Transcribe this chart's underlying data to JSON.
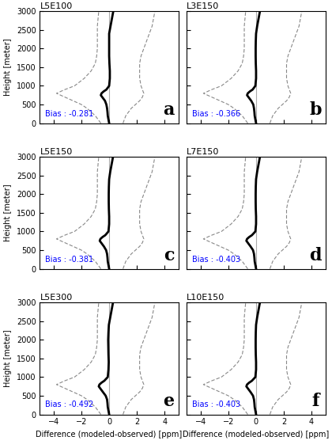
{
  "titles": [
    "L5E100",
    "L3E150",
    "L5E150",
    "L7E150",
    "L5E300",
    "L10E150"
  ],
  "labels": [
    "a",
    "b",
    "c",
    "d",
    "e",
    "f"
  ],
  "biases": [
    -0.281,
    -0.366,
    -0.381,
    -0.403,
    -0.492,
    -0.403
  ],
  "xlim": [
    -5.0,
    5.0
  ],
  "ylim": [
    0,
    3000
  ],
  "xlabel": "Difference (modeled-observed) [ppm]",
  "ylabel": "Height [meter]",
  "yticks": [
    0,
    500,
    1000,
    1500,
    2000,
    2500,
    3000
  ],
  "xticks": [
    -4.0,
    -2.0,
    0.0,
    2.0,
    4.0
  ],
  "bg_color": "#ffffff",
  "mean_color": "black",
  "std_color": "#888888",
  "bias_color": "blue",
  "vline_color": "#aaaaaa",
  "label_fontsize": 16,
  "bias_fontsize": 7,
  "title_fontsize": 8,
  "tick_fontsize": 7,
  "axis_label_fontsize": 7,
  "heights": [
    0,
    100,
    200,
    300,
    400,
    500,
    600,
    700,
    750,
    800,
    850,
    900,
    1000,
    1200,
    1400,
    1600,
    1800,
    2000,
    2200,
    2400,
    2600,
    2800,
    3000
  ],
  "mean_profiles": {
    "a": [
      0.0,
      -0.05,
      -0.1,
      -0.12,
      -0.15,
      -0.2,
      -0.3,
      -0.5,
      -0.6,
      -0.55,
      -0.4,
      -0.2,
      0.0,
      0.05,
      0.05,
      0.02,
      0.0,
      0.0,
      0.0,
      0.0,
      0.1,
      0.2,
      0.3
    ],
    "b": [
      0.0,
      -0.05,
      -0.1,
      -0.12,
      -0.15,
      -0.2,
      -0.35,
      -0.55,
      -0.65,
      -0.6,
      -0.45,
      -0.25,
      -0.05,
      0.0,
      0.0,
      -0.02,
      -0.03,
      -0.03,
      -0.02,
      0.0,
      0.08,
      0.18,
      0.28
    ],
    "c": [
      0.0,
      -0.05,
      -0.1,
      -0.12,
      -0.15,
      -0.22,
      -0.38,
      -0.58,
      -0.68,
      -0.63,
      -0.48,
      -0.28,
      -0.05,
      0.0,
      0.0,
      -0.02,
      -0.03,
      -0.03,
      -0.02,
      0.0,
      0.08,
      0.18,
      0.28
    ],
    "d": [
      0.0,
      -0.05,
      -0.1,
      -0.12,
      -0.15,
      -0.22,
      -0.4,
      -0.6,
      -0.7,
      -0.65,
      -0.5,
      -0.3,
      -0.05,
      0.0,
      0.0,
      -0.02,
      -0.03,
      -0.03,
      -0.02,
      0.0,
      0.08,
      0.18,
      0.28
    ],
    "e": [
      0.0,
      -0.05,
      -0.1,
      -0.12,
      -0.15,
      -0.25,
      -0.45,
      -0.65,
      -0.75,
      -0.7,
      -0.55,
      -0.35,
      -0.1,
      -0.05,
      -0.03,
      -0.05,
      -0.06,
      -0.07,
      -0.05,
      -0.02,
      0.08,
      0.18,
      0.28
    ],
    "f": [
      0.0,
      -0.05,
      -0.1,
      -0.12,
      -0.15,
      -0.22,
      -0.4,
      -0.6,
      -0.7,
      -0.65,
      -0.5,
      -0.3,
      -0.05,
      0.0,
      0.0,
      -0.02,
      -0.03,
      -0.03,
      -0.02,
      0.0,
      0.08,
      0.18,
      0.28
    ]
  },
  "left_std": [
    -0.6,
    -0.8,
    -1.0,
    -1.3,
    -1.6,
    -2.0,
    -2.6,
    -3.2,
    -3.5,
    -3.8,
    -3.5,
    -3.2,
    -2.5,
    -1.8,
    -1.3,
    -1.0,
    -0.9,
    -0.85,
    -0.85,
    -0.85,
    -0.85,
    -0.8,
    -0.75
  ],
  "right_std": [
    1.0,
    1.1,
    1.2,
    1.4,
    1.6,
    1.9,
    2.2,
    2.4,
    2.45,
    2.5,
    2.45,
    2.4,
    2.3,
    2.2,
    2.2,
    2.2,
    2.3,
    2.5,
    2.7,
    2.9,
    3.1,
    3.2,
    3.3
  ]
}
